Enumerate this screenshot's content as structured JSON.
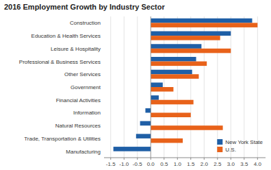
{
  "chart_data": {
    "type": "bar",
    "orientation": "horizontal",
    "title": "2016 Employment Growth by Industry Sector",
    "categories": [
      "Construction",
      "Education & Health Services",
      "Leisure & Hospitality",
      "Professional & Business Services",
      "Other Services",
      "Government",
      "Financial Activities",
      "Information",
      "Natural Resources",
      "Trade, Transportation & Utilities",
      "Manufacturing"
    ],
    "series": [
      {
        "name": "New York State",
        "color": "#1F5FA6",
        "values": [
          3.8,
          3.0,
          1.9,
          1.7,
          1.55,
          0.45,
          0.3,
          -0.2,
          -0.4,
          -0.55,
          -1.4
        ]
      },
      {
        "name": "U.S.",
        "color": "#E8621A",
        "values": [
          4.0,
          2.6,
          3.0,
          2.1,
          1.8,
          0.85,
          1.6,
          1.5,
          2.7,
          1.2,
          0.0
        ]
      }
    ],
    "xlim": [
      -1.75,
      4.3
    ],
    "xticks": [
      -1.5,
      {
        "value": -1.0,
        "label": "-1.0"
      },
      -0.5,
      {
        "value": 0.0,
        "label": "0.0"
      },
      0.5,
      {
        "value": 1.0,
        "label": "1.0"
      },
      1.5,
      {
        "value": 2.0,
        "label": "2.0"
      },
      2.5,
      {
        "value": 3.0,
        "label": "3.0"
      },
      3.5,
      {
        "value": 4.0,
        "label": "4.0"
      }
    ],
    "grid": true,
    "legend": "lower right"
  }
}
